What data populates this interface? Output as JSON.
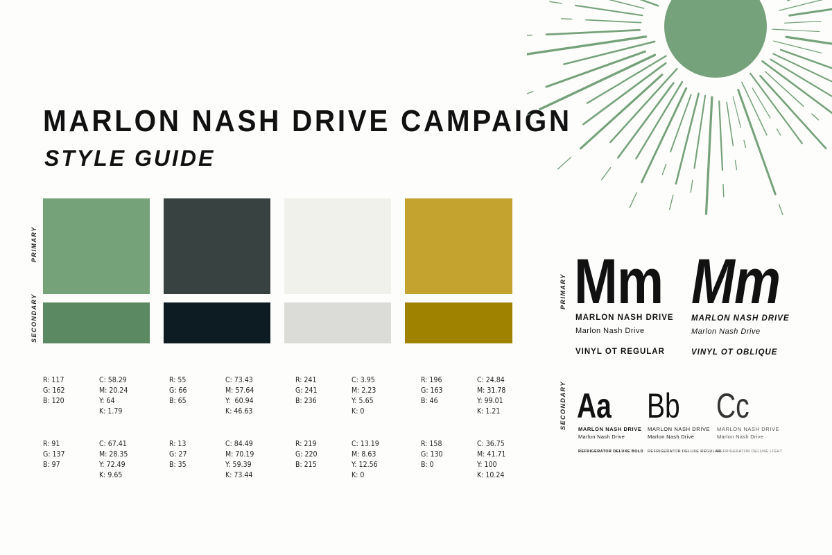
{
  "header": {
    "title": "MARLON NASH DRIVE CAMPAIGN",
    "subtitle": "STYLE GUIDE"
  },
  "labels": {
    "primary": "PRIMARY",
    "secondary": "SECONDARY"
  },
  "colors": {
    "sun": "#75a27a",
    "green_primary": "#75a278",
    "charcoal_primary": "#374241",
    "cream_primary": "#f1f1ec",
    "gold_primary": "#c4a32e",
    "green_secondary": "#5b8961",
    "charcoal_secondary": "#0d1b23",
    "cream_secondary": "#dbdcd7",
    "gold_secondary": "#9e8200"
  },
  "palette": {
    "primary": [
      {
        "rgb": [
          "R: 117",
          "G: 162",
          "B: 120"
        ],
        "cmyk": [
          "C: 58.29",
          "M: 20.24",
          "Y: 64",
          "K: 1.79"
        ]
      },
      {
        "rgb": [
          "R: 55",
          "G: 66",
          "B: 65"
        ],
        "cmyk": [
          "C: 73.43",
          "M: 57.64",
          "Y:  60.94",
          "K: 46.63"
        ]
      },
      {
        "rgb": [
          "R: 241",
          "G: 241",
          "B: 236"
        ],
        "cmyk": [
          "C: 3.95",
          "M: 2.23",
          "Y: 5.65",
          "K: 0"
        ]
      },
      {
        "rgb": [
          "R: 196",
          "G: 163",
          "B: 46"
        ],
        "cmyk": [
          "C: 24.84",
          "M: 31.78",
          "Y: 99.01",
          "K: 1.21"
        ]
      }
    ],
    "secondary": [
      {
        "rgb": [
          "R: 91",
          "G: 137",
          "B: 97"
        ],
        "cmyk": [
          "C: 67.41",
          "M: 28.35",
          "Y: 72.49",
          "K: 9.65"
        ]
      },
      {
        "rgb": [
          "R: 13",
          "G: 27",
          "B: 35"
        ],
        "cmyk": [
          "C: 84.49",
          "M: 70.19",
          "Y: 59.39",
          "K: 73.44"
        ]
      },
      {
        "rgb": [
          "R: 219",
          "G: 220",
          "B: 215"
        ],
        "cmyk": [
          "C: 13.19",
          "M: 8.63",
          "Y: 12.56",
          "K: 0"
        ]
      },
      {
        "rgb": [
          "R: 158",
          "G: 130",
          "B: 0"
        ],
        "cmyk": [
          "C: 36.75",
          "M: 41.71",
          "Y: 100",
          "K: 10.24"
        ]
      }
    ]
  },
  "typography": {
    "primary": [
      {
        "sample": "Mm",
        "name_upper": "MARLON NASH DRIVE",
        "name_mixed": "Marlon Nash Drive",
        "font": "VINYL OT REGULAR"
      },
      {
        "sample": "Mm",
        "name_upper": "MARLON NASH DRIVE",
        "name_mixed": "Marlon Nash Drive",
        "font": "VINYL OT OBLIQUE"
      }
    ],
    "secondary": [
      {
        "sample": "Aa",
        "name_upper": "MARLON NASH DRIVE",
        "name_mixed": "Marlon Nash Drive",
        "font": "REFRIGERATOR DELUXE BOLD"
      },
      {
        "sample": "Bb",
        "name_upper": "MARLON NASH DRIVE",
        "name_mixed": "Marlon Nash Drive",
        "font": "REFRIGERATOR DELUXE REGULAR"
      },
      {
        "sample": "Cc",
        "name_upper": "MARLON NASH DRIVE",
        "name_mixed": "Marlon Nash Drive",
        "font": "REFRIGERATOR DELUXE LIGHT"
      }
    ]
  }
}
